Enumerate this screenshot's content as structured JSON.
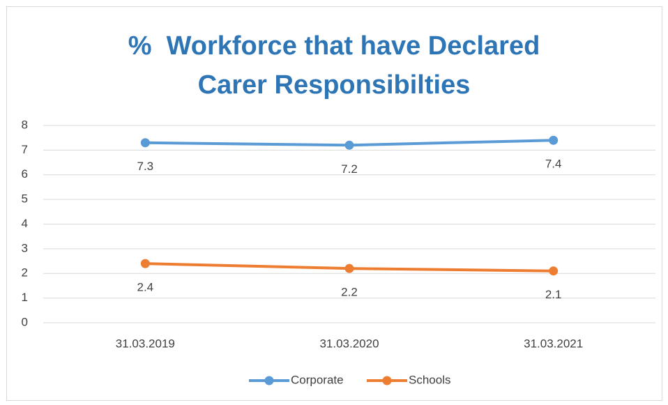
{
  "chart_data": {
    "type": "line",
    "title": "%  Workforce that have Declared Carer Responsibilties",
    "categories": [
      "31.03.2019",
      "31.03.2020",
      "31.03.2021"
    ],
    "series": [
      {
        "name": "Corporate",
        "color": "#5b9bd5",
        "values": [
          7.3,
          7.2,
          7.4
        ]
      },
      {
        "name": "Schools",
        "color": "#ed7d31",
        "values": [
          2.4,
          2.2,
          2.1
        ]
      }
    ],
    "ylim": [
      0,
      8
    ],
    "yticks": [
      0,
      1,
      2,
      3,
      4,
      5,
      6,
      7,
      8
    ],
    "grid": true,
    "legend": "bottom"
  }
}
